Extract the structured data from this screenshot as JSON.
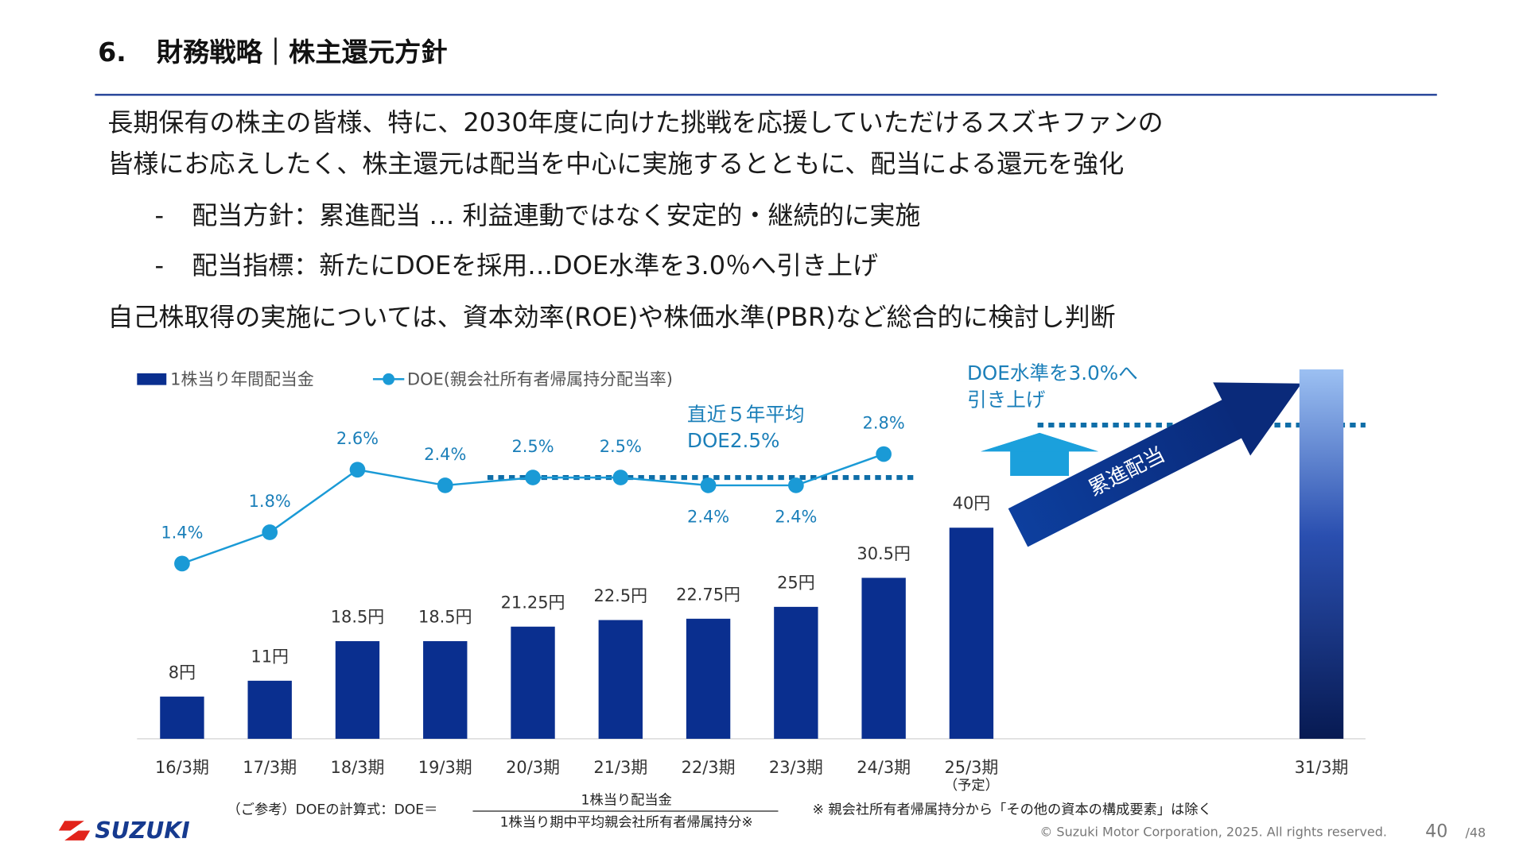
{
  "header": {
    "number": "6.",
    "title": "財務戦略｜株主還元方針"
  },
  "body": {
    "lines": [
      "長期保有の株主の皆様、特に、2030年度に向けた挑戦を応援していただけるスズキファンの",
      "皆様にお応えしたく、株主還元は配当を中心に実施するとともに、配当による還元を強化"
    ],
    "bullets": [
      {
        "marker": "-",
        "text": "配当方針：累進配当 … 利益連動ではなく安定的・継続的に実施"
      },
      {
        "marker": "-",
        "text": "配当指標：新たにDOEを採用…DOE水準を3.0％へ引き上げ"
      }
    ],
    "last_line": "自己株取得の実施については、資本効率(ROE)や株価水準(PBR)など総合的に検討し判断"
  },
  "chart_data": {
    "type": "bar",
    "categories": [
      "16/3期",
      "17/3期",
      "18/3期",
      "19/3期",
      "20/3期",
      "21/3期",
      "22/3期",
      "23/3期",
      "24/3期",
      "25/3期",
      "31/3期"
    ],
    "category_note": "（予定）",
    "ylim": [
      0,
      75
    ],
    "y2lim": [
      -0.84,
      4.22
    ],
    "series": [
      {
        "name": "1株当り年間配当金",
        "color": "#0a2f8f",
        "values": [
          8,
          11,
          18.5,
          18.5,
          21.25,
          22.5,
          22.75,
          25,
          30.5,
          40,
          70
        ],
        "value_labels": [
          "8円",
          "11円",
          "18.5円",
          "18.5円",
          "21.25円",
          "22.5円",
          "22.75円",
          "25円",
          "30.5円",
          "40円",
          null
        ]
      },
      {
        "name": "DOE(親会社所有者帰属持分配当率)",
        "type": "line",
        "axis": "y2",
        "color": "#1a9ad6",
        "values": [
          1.4,
          1.8,
          2.6,
          2.4,
          2.5,
          2.5,
          2.4,
          2.4,
          2.8,
          null,
          null
        ],
        "value_labels": [
          "1.4%",
          "1.8%",
          "2.6%",
          "2.4%",
          "2.5%",
          "2.5%",
          "2.4%",
          "2.4%",
          "2.8%",
          null,
          null
        ]
      }
    ],
    "reference_line": {
      "value": 2.5,
      "axis": "y2",
      "label": [
        "直近５年平均",
        "DOE2.5%"
      ]
    },
    "annotations": {
      "target": [
        "DOE水準を3.0%へ",
        "引き上げ"
      ],
      "arrow": "累進配当"
    }
  },
  "footnote": {
    "prefix": "（ご参考）DOEの計算式：DOE＝",
    "numerator": "1株当り配当金",
    "denominator": "1株当り期中平均親会社所有者帰属持分※",
    "remark": "※ 親会社所有者帰属持分から「その他の資本の構成要素」は除く"
  },
  "footer": {
    "logo": "SUZUKI",
    "copyright": "© Suzuki Motor Corporation, 2025. All rights reserved.",
    "page": "40",
    "total": "/48"
  }
}
